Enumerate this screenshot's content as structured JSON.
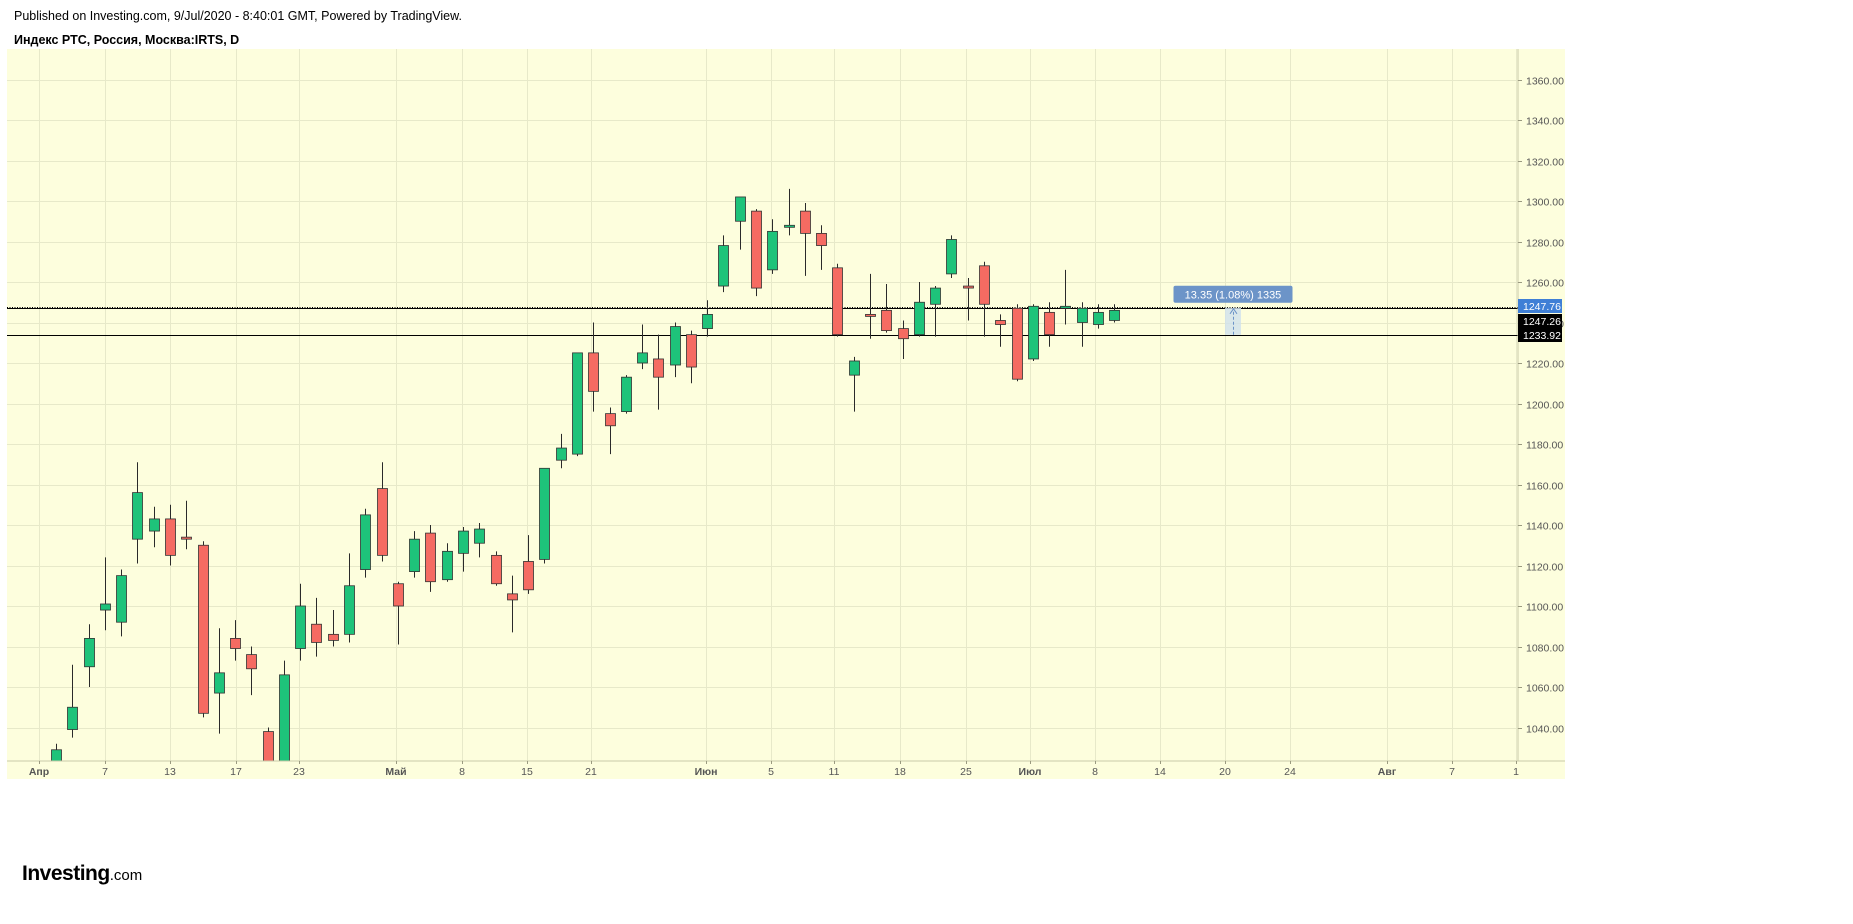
{
  "header": {
    "published": "Published on Investing.com, 9/Jul/2020 - 8:40:01 GMT, Powered by TradingView.",
    "symbol_line": "Индекс РТС, Россия, Москва:IRTS, D"
  },
  "logo": {
    "brand": "Investing",
    "tld": ".com"
  },
  "colors": {
    "background": "#fdfedd",
    "up": "#1ec37a",
    "down": "#f56b62",
    "wick": "#2a2a2a",
    "axis_text": "#555555",
    "grid": "#e7e9c9",
    "price_label_current": "#3f7fd6",
    "price_label_dark": "#000000",
    "measure_box": "#6c94c8"
  },
  "chart_data": {
    "type": "candlestick",
    "y_axis": {
      "ticks": [
        "1360.00",
        "1340.00",
        "1320.00",
        "1300.00",
        "1280.00",
        "1260.00",
        "1240.00",
        "1220.00",
        "1200.00",
        "1180.00",
        "1160.00",
        "1140.00",
        "1120.00",
        "1100.00",
        "1080.00",
        "1060.00",
        "1040.00"
      ],
      "ylim": [
        1024,
        1370
      ]
    },
    "x_axis": {
      "ticks": [
        "Апр",
        "7",
        "13",
        "17",
        "23",
        "Май",
        "8",
        "15",
        "21",
        "Июн",
        "5",
        "11",
        "18",
        "25",
        "Июл",
        "8",
        "14",
        "20",
        "24",
        "Авг",
        "7",
        "1"
      ]
    },
    "candles": [
      {
        "date": "2020-04-01",
        "open": 1017,
        "high": 1032,
        "low": 1012,
        "close": 1029
      },
      {
        "date": "2020-04-02",
        "open": 1039,
        "high": 1071,
        "low": 1035,
        "close": 1050
      },
      {
        "date": "2020-04-03",
        "open": 1070,
        "high": 1091,
        "low": 1060,
        "close": 1084
      },
      {
        "date": "2020-04-06",
        "open": 1098,
        "high": 1124,
        "low": 1088,
        "close": 1101
      },
      {
        "date": "2020-04-07",
        "open": 1092,
        "high": 1118,
        "low": 1085,
        "close": 1115
      },
      {
        "date": "2020-04-08",
        "open": 1133,
        "high": 1171,
        "low": 1121,
        "close": 1156
      },
      {
        "date": "2020-04-09",
        "open": 1137,
        "high": 1149,
        "low": 1129,
        "close": 1143
      },
      {
        "date": "2020-04-10",
        "open": 1143,
        "high": 1150,
        "low": 1120,
        "close": 1125
      },
      {
        "date": "2020-04-13",
        "open": 1134,
        "high": 1152,
        "low": 1128,
        "close": 1133
      },
      {
        "date": "2020-04-14",
        "open": 1130,
        "high": 1132,
        "low": 1045,
        "close": 1047
      },
      {
        "date": "2020-04-15",
        "open": 1057,
        "high": 1089,
        "low": 1037,
        "close": 1067
      },
      {
        "date": "2020-04-16",
        "open": 1084,
        "high": 1093,
        "low": 1073,
        "close": 1079
      },
      {
        "date": "2020-04-17",
        "open": 1076,
        "high": 1080,
        "low": 1056,
        "close": 1069
      },
      {
        "date": "2020-04-20",
        "open": 1038,
        "high": 1040,
        "low": 1003,
        "close": 1010
      },
      {
        "date": "2020-04-21",
        "open": 1019,
        "high": 1073,
        "low": 1015,
        "close": 1066
      },
      {
        "date": "2020-04-22",
        "open": 1079,
        "high": 1111,
        "low": 1073,
        "close": 1100
      },
      {
        "date": "2020-04-23",
        "open": 1091,
        "high": 1104,
        "low": 1075,
        "close": 1082
      },
      {
        "date": "2020-04-24",
        "open": 1086,
        "high": 1098,
        "low": 1080,
        "close": 1083
      },
      {
        "date": "2020-04-27",
        "open": 1086,
        "high": 1126,
        "low": 1082,
        "close": 1110
      },
      {
        "date": "2020-04-28",
        "open": 1118,
        "high": 1148,
        "low": 1114,
        "close": 1145
      },
      {
        "date": "2020-04-29",
        "open": 1158,
        "high": 1171,
        "low": 1122,
        "close": 1125
      },
      {
        "date": "2020-04-30",
        "open": 1111,
        "high": 1112,
        "low": 1081,
        "close": 1100
      },
      {
        "date": "2020-05-05",
        "open": 1117,
        "high": 1137,
        "low": 1114,
        "close": 1133
      },
      {
        "date": "2020-05-06",
        "open": 1136,
        "high": 1140,
        "low": 1107,
        "close": 1112
      },
      {
        "date": "2020-05-07",
        "open": 1113,
        "high": 1131,
        "low": 1112,
        "close": 1127
      },
      {
        "date": "2020-05-08",
        "open": 1126,
        "high": 1139,
        "low": 1117,
        "close": 1137
      },
      {
        "date": "2020-05-12",
        "open": 1131,
        "high": 1141,
        "low": 1124,
        "close": 1138
      },
      {
        "date": "2020-05-13",
        "open": 1125,
        "high": 1127,
        "low": 1110,
        "close": 1111
      },
      {
        "date": "2020-05-14",
        "open": 1106,
        "high": 1115,
        "low": 1087,
        "close": 1103
      },
      {
        "date": "2020-05-15",
        "open": 1122,
        "high": 1135,
        "low": 1106,
        "close": 1108
      },
      {
        "date": "2020-05-18",
        "open": 1123,
        "high": 1168,
        "low": 1121,
        "close": 1168
      },
      {
        "date": "2020-05-19",
        "open": 1172,
        "high": 1185,
        "low": 1168,
        "close": 1178
      },
      {
        "date": "2020-05-20",
        "open": 1175,
        "high": 1225,
        "low": 1174,
        "close": 1225
      },
      {
        "date": "2020-05-21",
        "open": 1225,
        "high": 1240,
        "low": 1196,
        "close": 1206
      },
      {
        "date": "2020-05-22",
        "open": 1195,
        "high": 1198,
        "low": 1175,
        "close": 1189
      },
      {
        "date": "2020-05-25",
        "open": 1196,
        "high": 1214,
        "low": 1195,
        "close": 1213
      },
      {
        "date": "2020-05-26",
        "open": 1220,
        "high": 1239,
        "low": 1217,
        "close": 1225
      },
      {
        "date": "2020-05-27",
        "open": 1222,
        "high": 1234,
        "low": 1197,
        "close": 1213
      },
      {
        "date": "2020-05-28",
        "open": 1219,
        "high": 1240,
        "low": 1213,
        "close": 1238
      },
      {
        "date": "2020-05-29",
        "open": 1234,
        "high": 1236,
        "low": 1210,
        "close": 1218
      },
      {
        "date": "2020-06-01",
        "open": 1237,
        "high": 1251,
        "low": 1233,
        "close": 1244
      },
      {
        "date": "2020-06-02",
        "open": 1258,
        "high": 1283,
        "low": 1255,
        "close": 1278
      },
      {
        "date": "2020-06-03",
        "open": 1290,
        "high": 1302,
        "low": 1276,
        "close": 1302
      },
      {
        "date": "2020-06-04",
        "open": 1295,
        "high": 1296,
        "low": 1253,
        "close": 1257
      },
      {
        "date": "2020-06-05",
        "open": 1266,
        "high": 1291,
        "low": 1264,
        "close": 1285
      },
      {
        "date": "2020-06-08",
        "open": 1287,
        "high": 1306,
        "low": 1283,
        "close": 1288
      },
      {
        "date": "2020-06-09",
        "open": 1295,
        "high": 1299,
        "low": 1263,
        "close": 1284
      },
      {
        "date": "2020-06-10",
        "open": 1284,
        "high": 1288,
        "low": 1266,
        "close": 1278
      },
      {
        "date": "2020-06-11",
        "open": 1267,
        "high": 1269,
        "low": 1233,
        "close": 1234
      },
      {
        "date": "2020-06-12",
        "open": 1214,
        "high": 1223,
        "low": 1196,
        "close": 1221
      },
      {
        "date": "2020-06-15",
        "open": 1244,
        "high": 1264,
        "low": 1232,
        "close": 1243
      },
      {
        "date": "2020-06-16",
        "open": 1246,
        "high": 1259,
        "low": 1235,
        "close": 1236
      },
      {
        "date": "2020-06-17",
        "open": 1237,
        "high": 1241,
        "low": 1222,
        "close": 1232
      },
      {
        "date": "2020-06-18",
        "open": 1234,
        "high": 1260,
        "low": 1233,
        "close": 1250
      },
      {
        "date": "2020-06-19",
        "open": 1249,
        "high": 1258,
        "low": 1233,
        "close": 1257
      },
      {
        "date": "2020-06-22",
        "open": 1264,
        "high": 1283,
        "low": 1262,
        "close": 1281
      },
      {
        "date": "2020-06-23",
        "open": 1258,
        "high": 1262,
        "low": 1241,
        "close": 1257
      },
      {
        "date": "2020-06-24",
        "open": 1268,
        "high": 1270,
        "low": 1233,
        "close": 1249
      },
      {
        "date": "2020-06-25",
        "open": 1241,
        "high": 1244,
        "low": 1228,
        "close": 1239
      },
      {
        "date": "2020-06-26",
        "open": 1247,
        "high": 1249,
        "low": 1211,
        "close": 1212
      },
      {
        "date": "2020-06-29",
        "open": 1222,
        "high": 1249,
        "low": 1221,
        "close": 1248
      },
      {
        "date": "2020-06-30",
        "open": 1245,
        "high": 1250,
        "low": 1228,
        "close": 1234
      },
      {
        "date": "2020-07-01",
        "open": 1248,
        "high": 1266,
        "low": 1239,
        "close": 1248
      },
      {
        "date": "2020-07-02",
        "open": 1240,
        "high": 1250,
        "low": 1228,
        "close": 1247
      },
      {
        "date": "2020-07-03",
        "open": 1239,
        "high": 1249,
        "low": 1237,
        "close": 1245
      },
      {
        "date": "2020-07-06",
        "open": 1241,
        "high": 1249,
        "low": 1240,
        "close": 1246
      }
    ],
    "price_lines": [
      {
        "label": "1247.76",
        "value": 1247.76,
        "style": "dotted"
      },
      {
        "label": "1247.26",
        "value": 1247.26,
        "style": "solid"
      },
      {
        "label": "1233.92",
        "value": 1233.92,
        "style": "solid"
      }
    ],
    "measure": {
      "label": "13.35 (1.08%) 1335",
      "from": 1233.92,
      "to": 1247.26
    }
  }
}
